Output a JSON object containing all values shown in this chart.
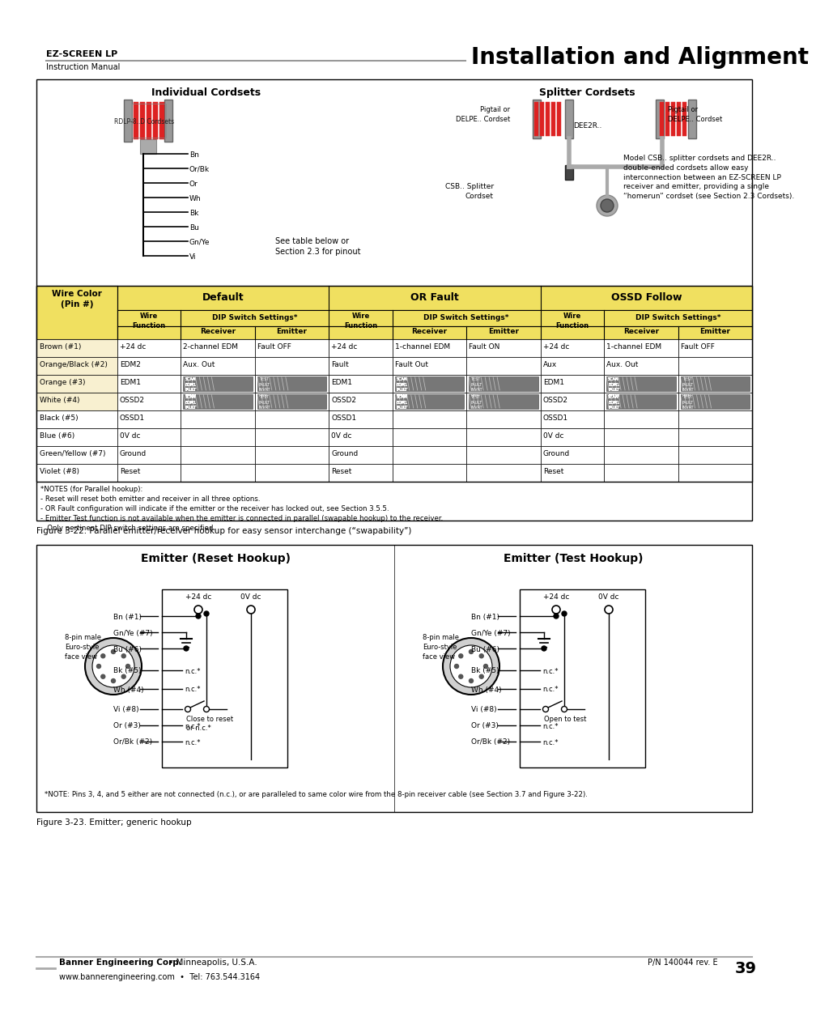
{
  "page_title_left": "EZ-SCREEN LP",
  "page_subtitle_left": "Instruction Manual",
  "page_title_right": "Installation and Alignment",
  "footer_left_bold": "Banner Engineering Corp.",
  "footer_left_normal": " • Minneapolis, U.S.A.",
  "footer_left_line2": "www.bannerengineering.com  •  Tel: 763.544.3164",
  "footer_right": "P/N 140044 rev. E",
  "footer_page": "39",
  "fig1_caption": "Figure 3-22. Parallel emitter/receiver hookup for easy sensor interchange (“swapability”)",
  "fig2_caption": "Figure 3-23. Emitter; generic hookup",
  "bg_color": "#ffffff",
  "individual_title": "Individual Cordsets",
  "splitter_title": "Splitter Cordsets",
  "emitter_reset_title": "Emitter (Reset Hookup)",
  "emitter_test_title": "Emitter (Test Hookup)",
  "wire_labels": [
    "Bn",
    "Or/Bk",
    "Or",
    "Wh",
    "Bk",
    "Bu",
    "Gn/Ye",
    "Vi"
  ],
  "rdlp_label": "RDLP-8..D Cordsets",
  "see_table_text": "See table below or\nSection 2.3 for pinout",
  "pigtail_left": "Pigtail or\nDELPE.. Cordset",
  "dee2r_label": "DEE2R..",
  "pigtail_right": "Pigtail or\nDELPE.. Cordset",
  "csb_splitter": "CSB.. Splitter\nCordset",
  "csb_desc": "Model CSB.. splitter cordsets and DEE2R..\ndouble-ended cordsets allow easy\ninterconnection between an EZ-SCREEN LP\nreceiver and emitter, providing a single\n“homerun” cordset (see Section 2.3 Cordsets).",
  "notes_text1": "*NOTES (for Parallel hookup):",
  "notes_text2": "- Reset will reset both emitter and receiver in all three options.",
  "notes_text3": "- OR Fault configuration will indicate if the emitter or the receiver has locked out, see Section 3.5.5.",
  "notes_text4": "- Emitter Test function is not available when the emitter is connected in parallel (swapable hookup) to the receiver.",
  "notes_text5": "   Only pertinent DIP switch settings are specified.",
  "emitter_note": "*NOTE: Pins 3, 4, and 5 either are not connected (n.c.), or are paralleled to same color wire from the 8-pin receiver cable (see Section 3.7 and Figure 3-22).",
  "emitter_labels": [
    "Bn (#1)",
    "Gn/Ye (#7)",
    "Bu (#6)",
    "Bk (#5)",
    "Wh (#4)",
    "Vi (#8)",
    "Or (#3)",
    "Or/Bk (#2)"
  ],
  "row_data": [
    [
      "Brown (#1)",
      "+24 dc",
      "2-channel EDM",
      "Fault OFF",
      "+24 dc",
      "1-channel EDM",
      "Fault ON",
      "+24 dc",
      "1-channel EDM",
      "Fault OFF"
    ],
    [
      "Orange/Black (#2)",
      "EDM2",
      "Aux. Out",
      "",
      "Fault",
      "Fault Out",
      "",
      "Aux",
      "Aux. Out",
      ""
    ],
    [
      "Orange (#3)",
      "EDM1",
      "dip",
      "dip",
      "EDM1",
      "dip",
      "dip",
      "EDM1",
      "dip",
      "dip"
    ],
    [
      "White (#4)",
      "OSSD2",
      "dip",
      "dip",
      "OSSD2",
      "dip",
      "dip",
      "OSSD2",
      "dip",
      "dip"
    ],
    [
      "Black (#5)",
      "OSSD1",
      "",
      "",
      "OSSD1",
      "",
      "",
      "OSSD1",
      "",
      ""
    ],
    [
      "Blue (#6)",
      "0V dc",
      "",
      "",
      "0V dc",
      "",
      "",
      "0V dc",
      "",
      ""
    ],
    [
      "Green/Yellow (#7)",
      "Ground",
      "",
      "",
      "Ground",
      "",
      "",
      "Ground",
      "",
      ""
    ],
    [
      "Violet (#8)",
      "Reset",
      "",
      "",
      "Reset",
      "",
      "",
      "Reset",
      "",
      ""
    ]
  ]
}
